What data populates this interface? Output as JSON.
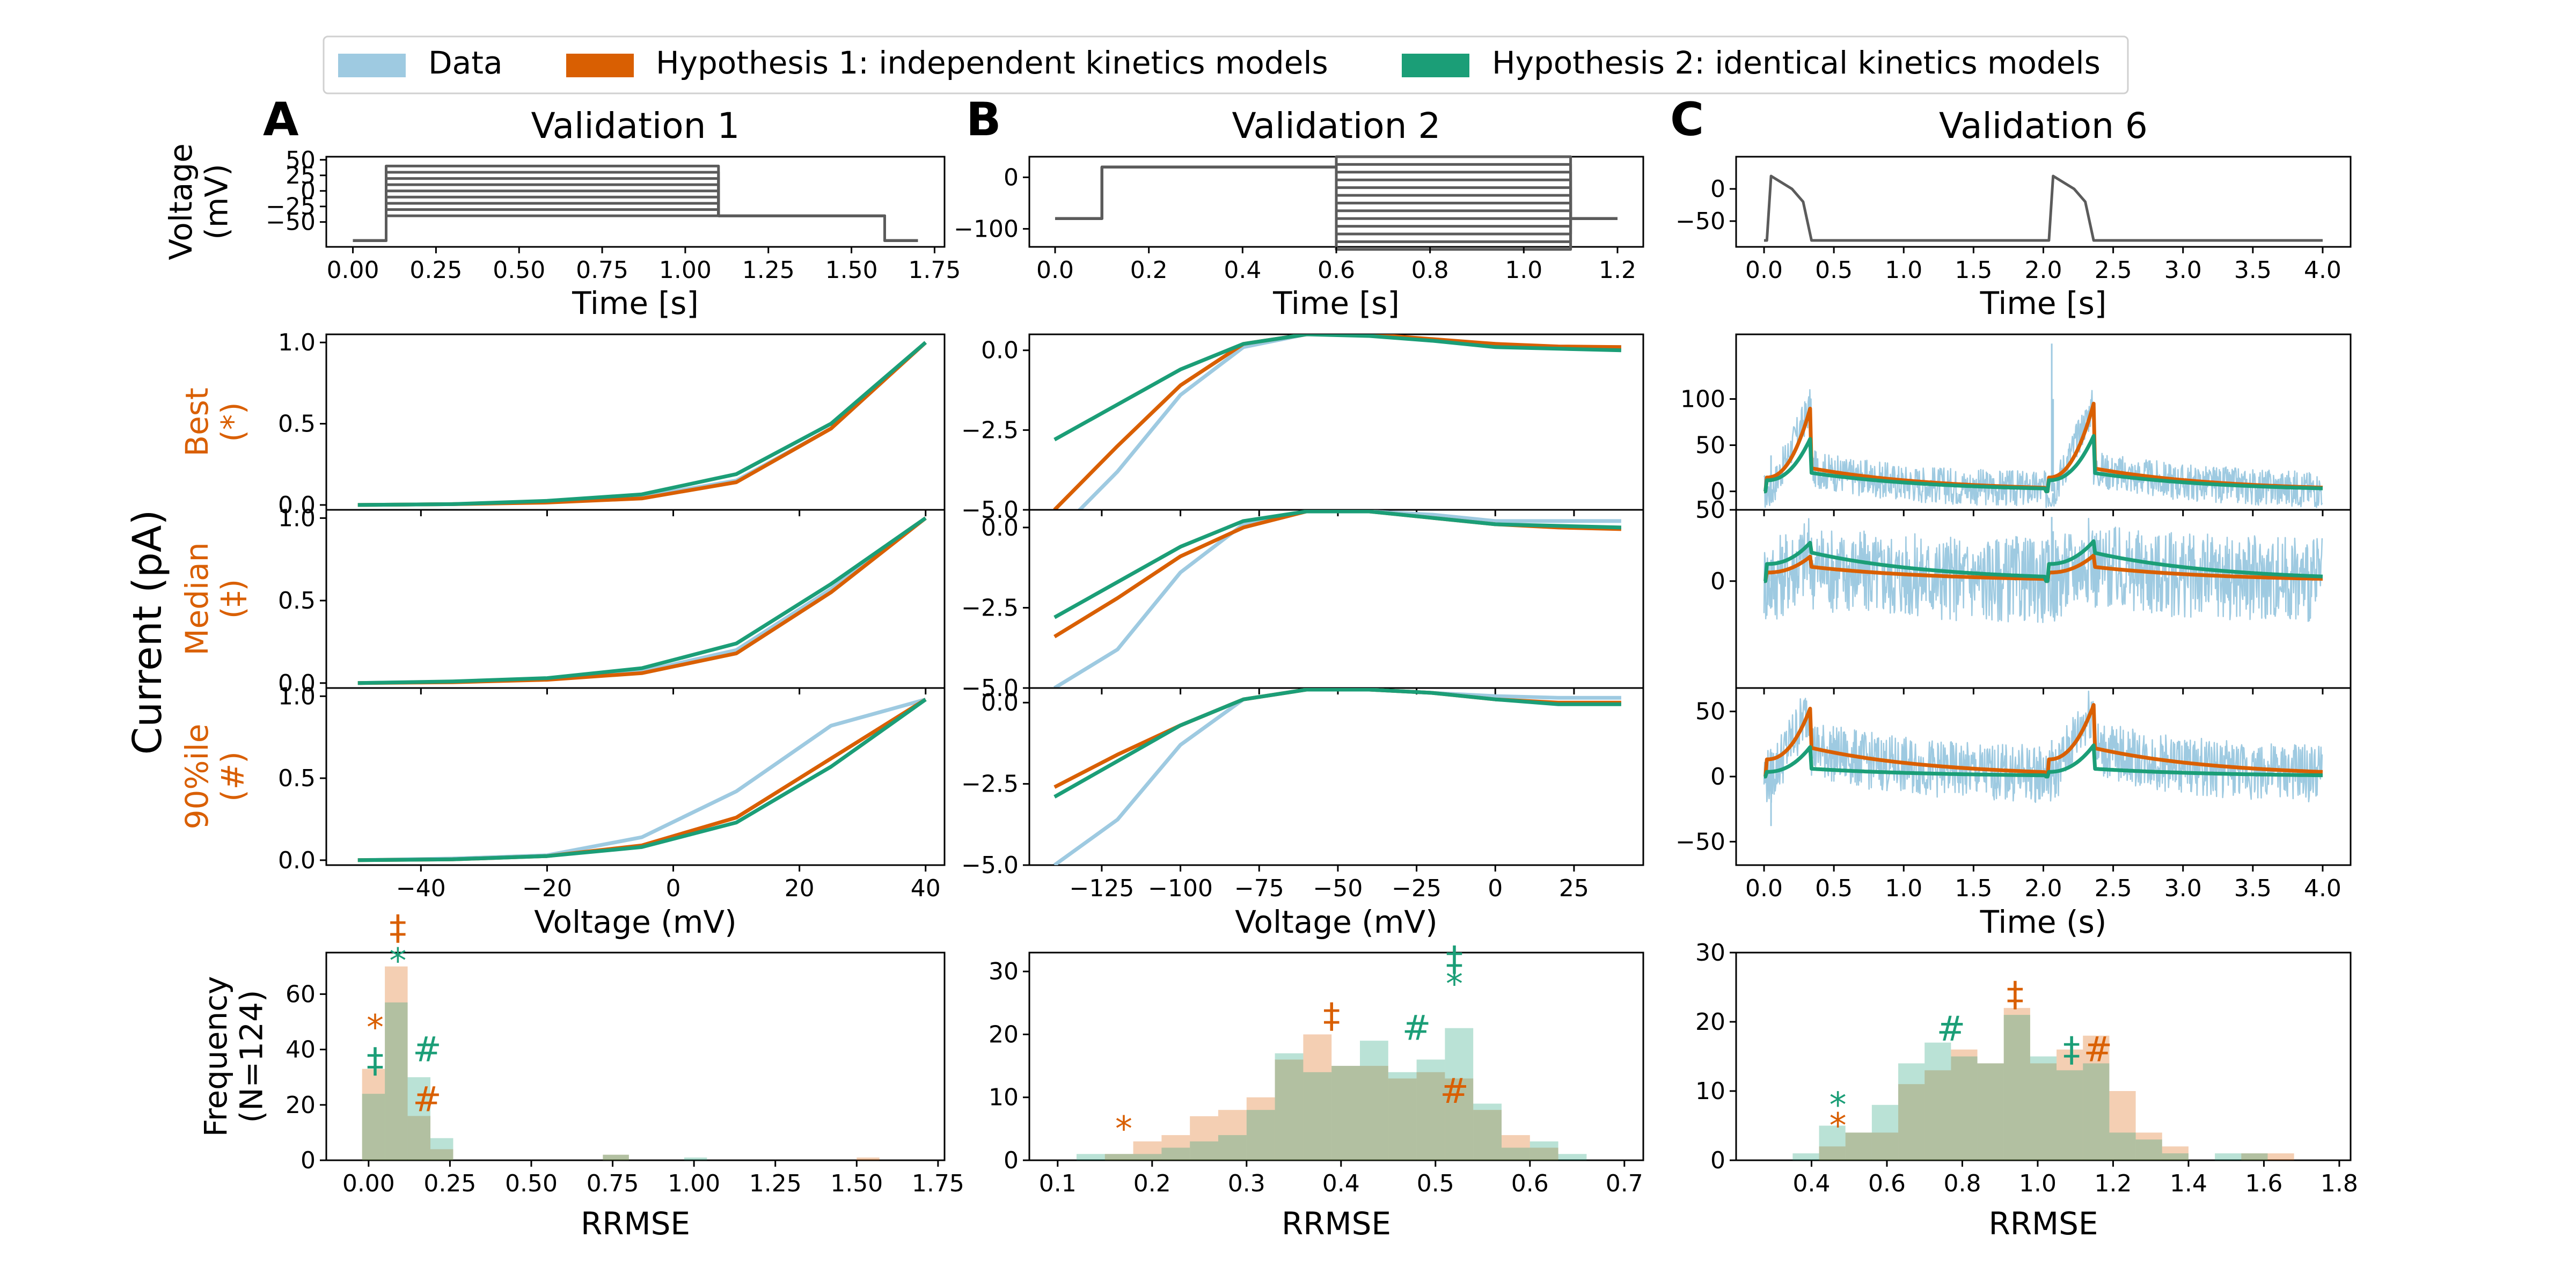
{
  "legend": {
    "items": [
      {
        "label": "Data",
        "color": "#9ecae1"
      },
      {
        "label": "Hypothesis 1: independent kinetics models",
        "color": "#d95f02"
      },
      {
        "label": "Hypothesis 2: identical kinetics models",
        "color": "#1b9e77"
      }
    ]
  },
  "figure": {
    "current_axis_label": "Current (pA)",
    "row_labels": [
      "Best\n(*)",
      "Median\n(‡)",
      "90%ile\n(#)"
    ],
    "row_label_color": "#d95f02"
  },
  "chart_data": [
    {
      "panel": "A",
      "title": "Validation 1",
      "type": "line",
      "protocol": {
        "xlabel": "Time [s]",
        "ylabel": "Voltage\n(mV)",
        "xlim": [
          -0.08,
          1.78
        ],
        "ylim": [
          -90,
          55
        ],
        "xticks": [
          "0.00",
          "0.25",
          "0.50",
          "0.75",
          "1.00",
          "1.25",
          "1.50",
          "1.75"
        ],
        "yticks": [
          "50",
          "25",
          "0",
          "-25",
          "-50"
        ],
        "shape": "va_step",
        "step_levels": [
          -40,
          -30,
          -20,
          -10,
          0,
          10,
          20,
          30,
          40
        ]
      },
      "iv": {
        "xlabel": "Voltage (mV)",
        "xlim": [
          -55,
          43
        ],
        "xticks": [
          "-40",
          "-20",
          "0",
          "20",
          "40"
        ],
        "x": [
          -50,
          -35,
          -20,
          -5,
          10,
          25,
          40
        ],
        "rows": [
          {
            "yticks": [
              "0.0",
              "0.5",
              "1.0"
            ],
            "ylim": [
              -0.03,
              1.05
            ],
            "data": [
              0.0,
              0.005,
              0.02,
              0.05,
              0.15,
              0.47,
              1.0
            ],
            "h1": [
              0.0,
              0.005,
              0.015,
              0.04,
              0.14,
              0.47,
              1.0
            ],
            "h2": [
              0.0,
              0.005,
              0.025,
              0.065,
              0.19,
              0.5,
              1.0
            ]
          },
          {
            "yticks": [
              "0.0",
              "0.5",
              "1.0"
            ],
            "ylim": [
              -0.03,
              1.05
            ],
            "data": [
              0.0,
              0.008,
              0.025,
              0.07,
              0.2,
              0.57,
              1.0
            ],
            "h1": [
              0.0,
              0.005,
              0.02,
              0.06,
              0.18,
              0.55,
              1.0
            ],
            "h2": [
              0.0,
              0.01,
              0.03,
              0.09,
              0.24,
              0.6,
              1.0
            ]
          },
          {
            "yticks": [
              "0.0",
              "0.5",
              "1.0"
            ],
            "ylim": [
              -0.03,
              1.05
            ],
            "data": [
              0.0,
              0.01,
              0.03,
              0.14,
              0.42,
              0.82,
              0.98
            ],
            "h1": [
              0.0,
              0.005,
              0.025,
              0.09,
              0.26,
              0.62,
              0.98
            ],
            "h2": [
              0.0,
              0.005,
              0.025,
              0.08,
              0.23,
              0.57,
              0.98
            ]
          }
        ]
      },
      "histogram": {
        "xlabel": "RRMSE",
        "ylabel": "Frequency\n(N=124)",
        "xlim": [
          -0.13,
          1.77
        ],
        "ylim": [
          0,
          75
        ],
        "xticks": [
          "0.00",
          "0.25",
          "0.50",
          "0.75",
          "1.00",
          "1.25",
          "1.50",
          "1.75"
        ],
        "yticks": [
          "0",
          "20",
          "40",
          "60"
        ],
        "bin_edges": [
          -0.02,
          0.05,
          0.12,
          0.19,
          0.26,
          0.33
        ],
        "h1_counts": [
          33,
          70,
          16,
          4,
          0
        ],
        "h2_counts": [
          24,
          57,
          30,
          8,
          0
        ],
        "extra_h1": [
          {
            "x": [
              0.72,
              0.8
            ],
            "v": 2
          },
          {
            "x": [
              1.5,
              1.57
            ],
            "v": 1
          }
        ],
        "extra_h2": [
          {
            "x": [
              0.72,
              0.8
            ],
            "v": 2
          },
          {
            "x": [
              0.97,
              1.04
            ],
            "v": 1
          }
        ],
        "markers": [
          {
            "symbol": "*",
            "series": "h1",
            "x": 0.02,
            "y": 48
          },
          {
            "symbol": "‡",
            "series": "h2",
            "x": 0.02,
            "y": 36
          },
          {
            "symbol": "‡",
            "series": "h1",
            "x": 0.09,
            "y": 84
          },
          {
            "symbol": "*",
            "series": "h2",
            "x": 0.09,
            "y": 72
          },
          {
            "symbol": "#",
            "series": "h2",
            "x": 0.18,
            "y": 40
          },
          {
            "symbol": "#",
            "series": "h1",
            "x": 0.18,
            "y": 22
          }
        ]
      }
    },
    {
      "panel": "B",
      "title": "Validation 2",
      "type": "line",
      "protocol": {
        "xlabel": "Time [s]",
        "ylabel": "",
        "xlim": [
          -0.055,
          1.255
        ],
        "ylim": [
          -135,
          40
        ],
        "xticks": [
          "0.0",
          "0.2",
          "0.4",
          "0.6",
          "0.8",
          "1.0",
          "1.2"
        ],
        "yticks": [
          "0",
          "-100"
        ],
        "shape": "va_steps2",
        "step_levels": [
          -140,
          -125,
          -110,
          -95,
          -80,
          -65,
          -50,
          -35,
          -20,
          -5,
          10,
          25,
          40
        ]
      },
      "iv": {
        "xlabel": "Voltage (mV)",
        "xlim": [
          -148,
          47
        ],
        "xticks": [
          "-125",
          "-100",
          "-75",
          "-50",
          "-25",
          "0",
          "25"
        ],
        "x": [
          -140,
          -120,
          -100,
          -80,
          -60,
          -40,
          -20,
          0,
          20,
          40
        ],
        "rows": [
          {
            "yticks": [
              "0.0",
              "-2.5",
              "-5.0"
            ],
            "ylim": [
              -5.0,
              0.5
            ],
            "data": [
              -5.8,
              -3.8,
              -1.4,
              0.1,
              0.5,
              0.5,
              0.3,
              0.2,
              0.1,
              0.1
            ],
            "h1": [
              -5.0,
              -3.0,
              -1.1,
              0.2,
              0.5,
              0.5,
              0.35,
              0.2,
              0.12,
              0.1
            ],
            "h2": [
              -2.8,
              -1.7,
              -0.6,
              0.2,
              0.5,
              0.45,
              0.3,
              0.1,
              0.05,
              0.0
            ]
          },
          {
            "yticks": [
              "0.0",
              "-2.5",
              "-5.0"
            ],
            "ylim": [
              -5.0,
              0.55
            ],
            "data": [
              -5.0,
              -3.8,
              -1.4,
              0.1,
              0.5,
              0.5,
              0.4,
              0.2,
              0.2,
              0.2
            ],
            "h1": [
              -3.4,
              -2.2,
              -0.9,
              0.0,
              0.5,
              0.5,
              0.3,
              0.1,
              0.0,
              -0.05
            ],
            "h2": [
              -2.8,
              -1.7,
              -0.6,
              0.2,
              0.5,
              0.5,
              0.3,
              0.1,
              0.05,
              0.0
            ]
          },
          {
            "yticks": [
              "0.0",
              "-2.5",
              "-5.0"
            ],
            "ylim": [
              -5.0,
              0.45
            ],
            "data": [
              -5.0,
              -3.6,
              -1.3,
              0.1,
              0.4,
              0.4,
              0.3,
              0.2,
              0.15,
              0.15
            ],
            "h1": [
              -2.6,
              -1.6,
              -0.7,
              0.1,
              0.4,
              0.4,
              0.3,
              0.1,
              0.0,
              0.0
            ],
            "h2": [
              -2.9,
              -1.8,
              -0.7,
              0.1,
              0.4,
              0.4,
              0.3,
              0.1,
              -0.05,
              -0.05
            ]
          }
        ]
      },
      "histogram": {
        "xlabel": "RRMSE",
        "ylabel": "",
        "xlim": [
          0.07,
          0.72
        ],
        "ylim": [
          0,
          33
        ],
        "xticks": [
          "0.1",
          "0.2",
          "0.3",
          "0.4",
          "0.5",
          "0.6",
          "0.7"
        ],
        "yticks": [
          "0",
          "10",
          "20",
          "30"
        ],
        "bin_edges": [
          0.12,
          0.15,
          0.18,
          0.21,
          0.24,
          0.27,
          0.3,
          0.33,
          0.36,
          0.39,
          0.42,
          0.45,
          0.48,
          0.51,
          0.54,
          0.57,
          0.6,
          0.63,
          0.66
        ],
        "h1_counts": [
          0,
          1,
          3,
          4,
          7,
          8,
          10,
          16,
          20,
          15,
          15,
          13,
          14,
          13,
          8,
          4,
          2,
          0
        ],
        "h2_counts": [
          1,
          1,
          1,
          2,
          3,
          4,
          8,
          17,
          14,
          15,
          19,
          14,
          16,
          21,
          9,
          2,
          3,
          1
        ],
        "extra_h1": [],
        "extra_h2": [],
        "markers": [
          {
            "symbol": "*",
            "series": "h1",
            "x": 0.17,
            "y": 5
          },
          {
            "symbol": "‡",
            "series": "h1",
            "x": 0.39,
            "y": 23
          },
          {
            "symbol": "#",
            "series": "h2",
            "x": 0.48,
            "y": 21
          },
          {
            "symbol": "#",
            "series": "h1",
            "x": 0.52,
            "y": 11
          },
          {
            "symbol": "‡",
            "series": "h2",
            "x": 0.52,
            "y": 32
          },
          {
            "symbol": "*",
            "series": "h2",
            "x": 0.52,
            "y": 28
          }
        ]
      }
    },
    {
      "panel": "C",
      "title": "Validation 6",
      "type": "line",
      "protocol": {
        "xlabel": "Time [s]",
        "ylabel": "",
        "xlim": [
          -0.2,
          4.2
        ],
        "ylim": [
          -90,
          50
        ],
        "xticks": [
          "0.0",
          "0.5",
          "1.0",
          "1.5",
          "2.0",
          "2.5",
          "3.0",
          "3.5",
          "4.0"
        ],
        "yticks": [
          "0",
          "-50"
        ],
        "shape": "ap"
      },
      "trace": {
        "xlabel": "Time (s)",
        "xlim": [
          -0.2,
          4.2
        ],
        "xticks": [
          "0.0",
          "0.5",
          "1.0",
          "1.5",
          "2.0",
          "2.5",
          "3.0",
          "3.5",
          "4.0"
        ],
        "rows": [
          {
            "yticks": [
              "100",
              "50",
              "0"
            ],
            "ylim": [
              -20,
              170
            ],
            "h1_peak": 95,
            "h1_tail": 25,
            "h2_peak": 60,
            "h2_tail": 20,
            "spike1": [
              22,
              100
            ],
            "spike2": [
              78,
              160
            ],
            "noise": 20
          },
          {
            "yticks": [
              "50",
              "0"
            ],
            "ylim": [
              -75,
              50
            ],
            "h1_peak": 18,
            "h1_tail": 10,
            "h2_peak": 28,
            "h2_tail": 20,
            "spike1": [
              8,
              35
            ],
            "spike2": [
              30,
              45
            ],
            "noise": 30
          },
          {
            "yticks": [
              "50",
              "0",
              "-50"
            ],
            "ylim": [
              -68,
              68
            ],
            "h1_peak": 55,
            "h1_tail": 22,
            "h2_peak": 24,
            "h2_tail": 6,
            "spike1": [
              -38,
              15
            ],
            "spike2": [
              -28,
              28
            ],
            "noise": 22
          }
        ]
      },
      "histogram": {
        "xlabel": "RRMSE",
        "ylabel": "",
        "xlim": [
          0.2,
          1.83
        ],
        "ylim": [
          0,
          30
        ],
        "xticks": [
          "0.4",
          "0.6",
          "0.8",
          "1.0",
          "1.2",
          "1.4",
          "1.6",
          "1.8"
        ],
        "yticks": [
          "0",
          "10",
          "20",
          "30"
        ],
        "bin_edges": [
          0.35,
          0.42,
          0.49,
          0.56,
          0.63,
          0.7,
          0.77,
          0.84,
          0.91,
          0.98,
          1.05,
          1.12,
          1.19,
          1.26,
          1.33,
          1.4,
          1.47,
          1.54,
          1.61,
          1.68
        ],
        "h1_counts": [
          0,
          2,
          4,
          4,
          11,
          13,
          16,
          14,
          22,
          14,
          16,
          18,
          10,
          4,
          2,
          0,
          0,
          1,
          1
        ],
        "h2_counts": [
          1,
          5,
          4,
          8,
          14,
          17,
          15,
          14,
          21,
          15,
          13,
          14,
          4,
          3,
          1,
          0,
          1,
          1,
          0
        ],
        "extra_h1": [],
        "extra_h2": [],
        "markers": [
          {
            "symbol": "*",
            "series": "h2",
            "x": 0.47,
            "y": 8
          },
          {
            "symbol": "*",
            "series": "h1",
            "x": 0.47,
            "y": 5
          },
          {
            "symbol": "#",
            "series": "h2",
            "x": 0.77,
            "y": 19
          },
          {
            "symbol": "‡",
            "series": "h1",
            "x": 0.94,
            "y": 24
          },
          {
            "symbol": "‡",
            "series": "h2",
            "x": 1.09,
            "y": 16
          },
          {
            "symbol": "#",
            "series": "h1",
            "x": 1.16,
            "y": 16
          }
        ]
      }
    }
  ]
}
